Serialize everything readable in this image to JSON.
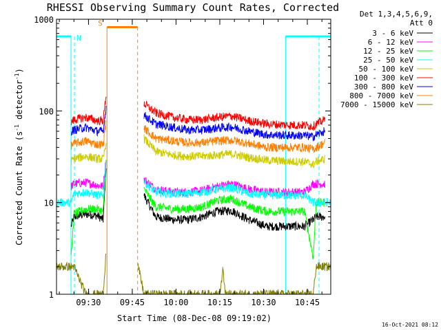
{
  "chart_data": {
    "type": "line",
    "title": "RHESSI Observing Summary Count Rates, Corrected",
    "xlabel": "Start Time (08-Dec-08 09:19:02)",
    "ylabel": "Corrected Count Rate (s⁻¹ detector⁻¹)",
    "ylabel_parts": {
      "main": "Corrected Count Rate (s",
      "exp1": "-1",
      "mid": " detector",
      "exp2": "-1",
      "end": ")"
    },
    "yscale": "log",
    "ylim": [
      1,
      1000
    ],
    "xlim_minutes": [
      0,
      94
    ],
    "y_ticks": [
      {
        "value": 1,
        "label": "1"
      },
      {
        "value": 10,
        "label": "10"
      },
      {
        "value": 100,
        "label": "100"
      },
      {
        "value": 1000,
        "label": "1000"
      }
    ],
    "x_ticks": [
      {
        "minute": 10.97,
        "label": "09:30"
      },
      {
        "minute": 25.97,
        "label": "09:45"
      },
      {
        "minute": 40.97,
        "label": "10:00"
      },
      {
        "minute": 55.97,
        "label": "10:15"
      },
      {
        "minute": 70.97,
        "label": "10:30"
      },
      {
        "minute": 85.97,
        "label": "10:45"
      }
    ],
    "legend_header": [
      "Det 1,3,4,5,6,9,",
      "Att 0"
    ],
    "series": [
      {
        "name": "3 - 6 keV",
        "color": "#000000",
        "points": [
          [
            5,
            5.5
          ],
          [
            6,
            7
          ],
          [
            10,
            7.5
          ],
          [
            14,
            7.2
          ],
          [
            16,
            6.5
          ],
          [
            17,
            25
          ],
          [
            27,
            0
          ],
          [
            30,
            12
          ],
          [
            34,
            7
          ],
          [
            40,
            6.5
          ],
          [
            45,
            6.5
          ],
          [
            50,
            7
          ],
          [
            55,
            8
          ],
          [
            60,
            8.2
          ],
          [
            66,
            6.5
          ],
          [
            72,
            5.5
          ],
          [
            80,
            5.5
          ],
          [
            85,
            5.5
          ],
          [
            88,
            6.5
          ],
          [
            89,
            7
          ],
          [
            92,
            7
          ]
        ]
      },
      {
        "name": "6 - 12 keV",
        "color": "#ff00ff",
        "points": [
          [
            5,
            15
          ],
          [
            6,
            16
          ],
          [
            10,
            16.5
          ],
          [
            14,
            15.5
          ],
          [
            16,
            15
          ],
          [
            17,
            30
          ],
          [
            27,
            0
          ],
          [
            30,
            18
          ],
          [
            34,
            14
          ],
          [
            40,
            13
          ],
          [
            45,
            13
          ],
          [
            50,
            13.5
          ],
          [
            55,
            15
          ],
          [
            60,
            16
          ],
          [
            66,
            14
          ],
          [
            72,
            13
          ],
          [
            80,
            13
          ],
          [
            85,
            13
          ],
          [
            88,
            16
          ],
          [
            89,
            16
          ],
          [
            92,
            16
          ]
        ]
      },
      {
        "name": "12 - 25 keV",
        "color": "#00ff00",
        "points": [
          [
            5,
            2.5
          ],
          [
            6,
            7.5
          ],
          [
            10,
            8.5
          ],
          [
            14,
            8.5
          ],
          [
            16,
            8
          ],
          [
            17,
            28
          ],
          [
            27,
            0
          ],
          [
            30,
            14
          ],
          [
            34,
            9
          ],
          [
            40,
            8.5
          ],
          [
            45,
            8.5
          ],
          [
            50,
            9
          ],
          [
            55,
            10.5
          ],
          [
            60,
            11
          ],
          [
            66,
            9
          ],
          [
            72,
            8
          ],
          [
            80,
            8
          ],
          [
            85,
            8
          ],
          [
            88,
            2.5
          ],
          [
            89,
            10
          ],
          [
            92,
            10
          ]
        ]
      },
      {
        "name": "25 - 50 keV",
        "color": "#00ffff",
        "points": [
          [
            0,
            10
          ],
          [
            5,
            10
          ],
          [
            6,
            12.5
          ],
          [
            10,
            13
          ],
          [
            14,
            12
          ],
          [
            16,
            12
          ],
          [
            17,
            30
          ],
          [
            27,
            0
          ],
          [
            30,
            17
          ],
          [
            34,
            13
          ],
          [
            40,
            12.5
          ],
          [
            45,
            12.5
          ],
          [
            50,
            13
          ],
          [
            55,
            14
          ],
          [
            60,
            14.5
          ],
          [
            66,
            12.5
          ],
          [
            72,
            12
          ],
          [
            80,
            12
          ],
          [
            85,
            12
          ],
          [
            88,
            10
          ],
          [
            89,
            10
          ],
          [
            94,
            10
          ]
        ]
      },
      {
        "name": "50 - 100 keV",
        "color": "#cccc00",
        "points": [
          [
            5,
            28
          ],
          [
            6,
            30
          ],
          [
            10,
            32
          ],
          [
            14,
            30
          ],
          [
            16,
            30
          ],
          [
            17,
            45
          ],
          [
            27,
            0
          ],
          [
            30,
            50
          ],
          [
            34,
            36
          ],
          [
            40,
            33
          ],
          [
            45,
            32
          ],
          [
            50,
            32
          ],
          [
            55,
            33
          ],
          [
            60,
            34
          ],
          [
            66,
            31
          ],
          [
            72,
            29
          ],
          [
            80,
            28
          ],
          [
            85,
            28
          ],
          [
            88,
            26
          ],
          [
            89,
            28
          ],
          [
            92,
            30
          ]
        ]
      },
      {
        "name": "100 - 300 keV",
        "color": "#ff0000",
        "points": [
          [
            5,
            75
          ],
          [
            6,
            80
          ],
          [
            10,
            85
          ],
          [
            14,
            78
          ],
          [
            16,
            78
          ],
          [
            17,
            150
          ],
          [
            27,
            0
          ],
          [
            30,
            120
          ],
          [
            34,
            95
          ],
          [
            40,
            85
          ],
          [
            45,
            80
          ],
          [
            50,
            80
          ],
          [
            55,
            85
          ],
          [
            60,
            88
          ],
          [
            66,
            78
          ],
          [
            72,
            72
          ],
          [
            80,
            70
          ],
          [
            85,
            70
          ],
          [
            88,
            68
          ],
          [
            89,
            72
          ],
          [
            92,
            80
          ]
        ]
      },
      {
        "name": "300 - 800 keV",
        "color": "#0000ff",
        "points": [
          [
            5,
            60
          ],
          [
            6,
            62
          ],
          [
            10,
            66
          ],
          [
            14,
            60
          ],
          [
            16,
            60
          ],
          [
            17,
            110
          ],
          [
            27,
            0
          ],
          [
            30,
            90
          ],
          [
            34,
            72
          ],
          [
            40,
            66
          ],
          [
            45,
            62
          ],
          [
            50,
            62
          ],
          [
            55,
            65
          ],
          [
            60,
            67
          ],
          [
            66,
            60
          ],
          [
            72,
            55
          ],
          [
            80,
            54
          ],
          [
            85,
            54
          ],
          [
            88,
            52
          ],
          [
            89,
            55
          ],
          [
            92,
            60
          ]
        ]
      },
      {
        "name": "800 - 7000 keV",
        "color": "#ff8000",
        "points": [
          [
            5,
            42
          ],
          [
            6,
            44
          ],
          [
            10,
            47
          ],
          [
            14,
            43
          ],
          [
            16,
            43
          ],
          [
            17,
            80
          ],
          [
            27,
            0
          ],
          [
            30,
            65
          ],
          [
            34,
            50
          ],
          [
            40,
            47
          ],
          [
            45,
            45
          ],
          [
            50,
            45
          ],
          [
            55,
            47
          ],
          [
            60,
            48
          ],
          [
            66,
            44
          ],
          [
            72,
            40
          ],
          [
            80,
            40
          ],
          [
            85,
            40
          ],
          [
            88,
            38
          ],
          [
            89,
            40
          ],
          [
            92,
            45
          ]
        ]
      },
      {
        "name": "7000 - 15000 keV",
        "color": "#808000",
        "points": [
          [
            0,
            2
          ],
          [
            5,
            2
          ],
          [
            6,
            2
          ],
          [
            10,
            1
          ],
          [
            15,
            1
          ],
          [
            16,
            1
          ],
          [
            17,
            3
          ],
          [
            27,
            0
          ],
          [
            28,
            2
          ],
          [
            30,
            1
          ],
          [
            56,
            1
          ],
          [
            57,
            1.8
          ],
          [
            58,
            1
          ],
          [
            88,
            1
          ],
          [
            89,
            2
          ],
          [
            92,
            2
          ],
          [
            94,
            2
          ]
        ]
      }
    ],
    "night_intervals": [
      [
        0,
        4.97
      ],
      [
        78.5,
        94
      ]
    ],
    "saa_intervals": [
      [
        17.3,
        27.8
      ]
    ],
    "night_label": "N",
    "saa_label": "S",
    "night_color": "#00ffff",
    "saa_color": "#ff8000"
  },
  "timestamp": "16-Oct-2021 08:12"
}
